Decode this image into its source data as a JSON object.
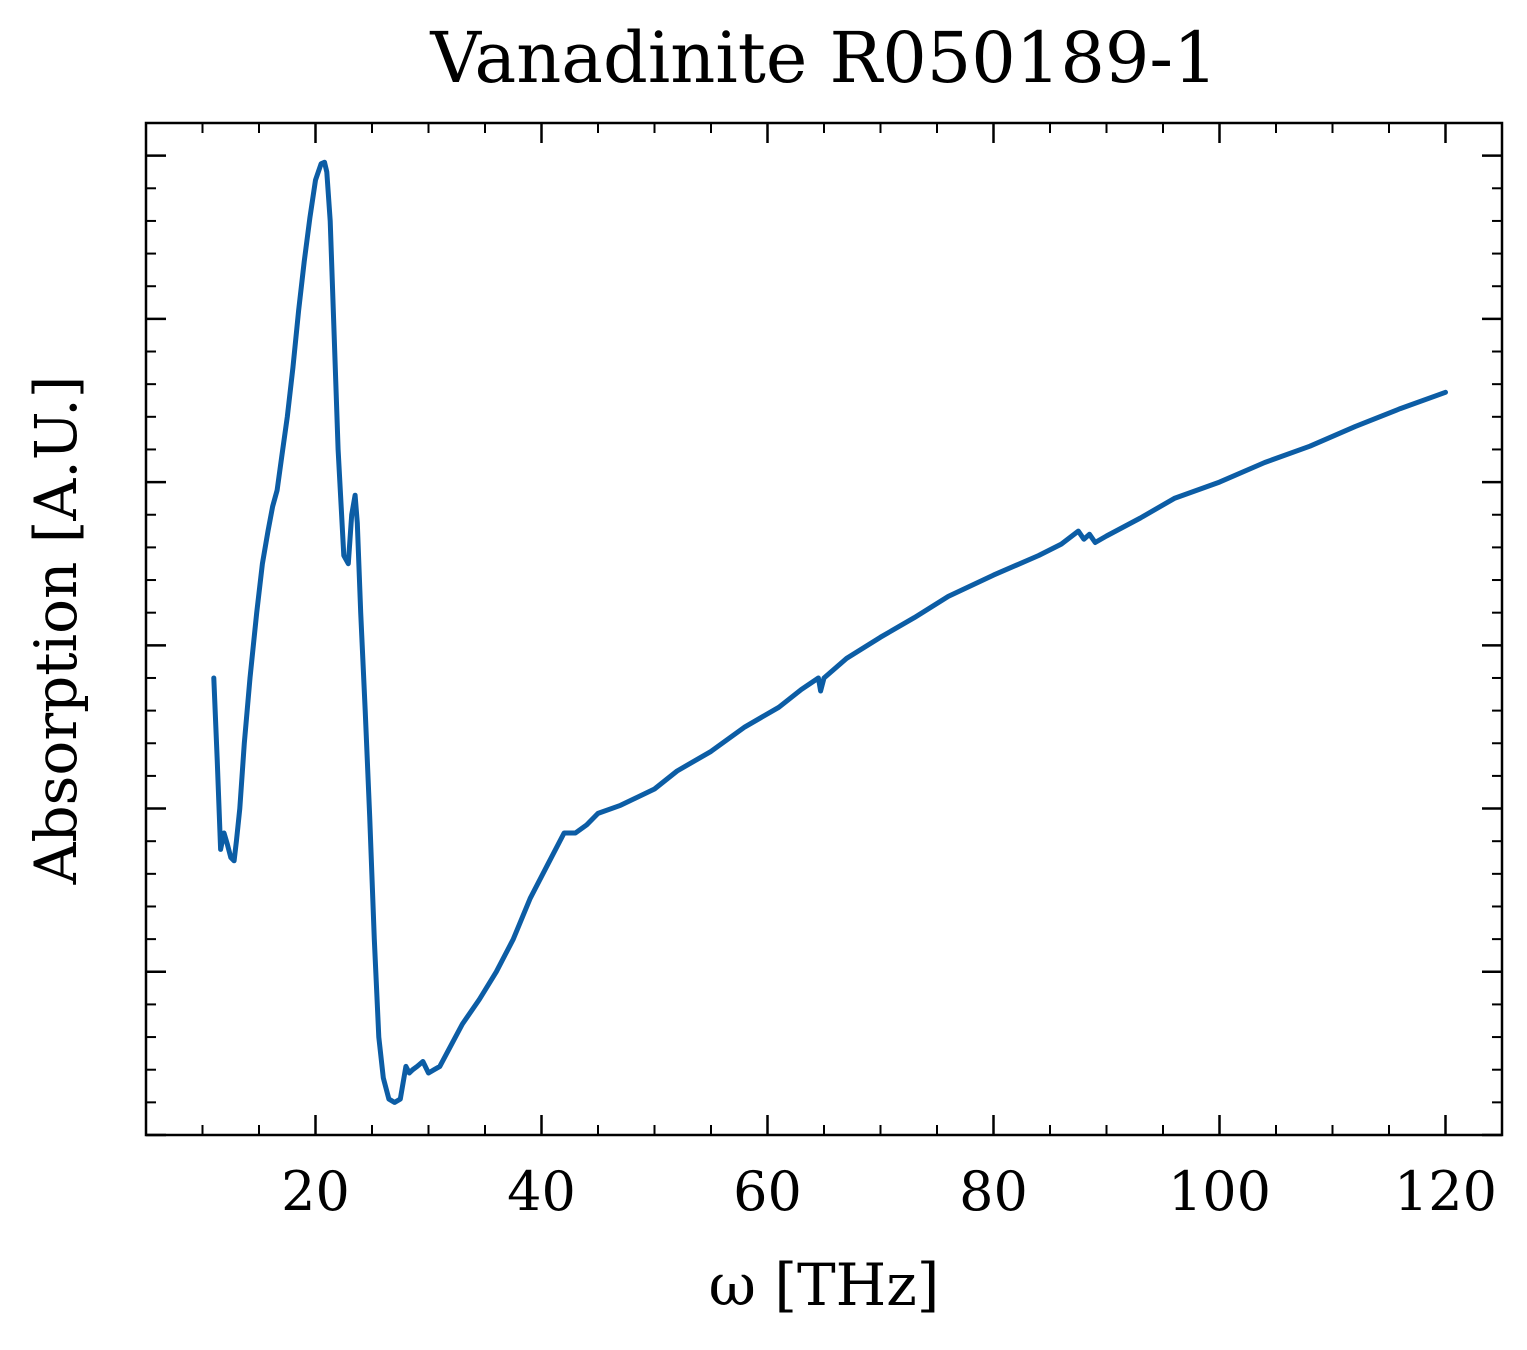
{
  "chart_data": {
    "type": "line",
    "title": "Vanadinite R050189-1",
    "xlabel": "ω [THz]",
    "ylabel": "Absorption [A.U.]",
    "xlim": [
      5,
      125
    ],
    "ylim": [
      0,
      6.2
    ],
    "y_tick_labels_shown": false,
    "grid": false,
    "x_ticks": [
      {
        "value": 20,
        "label": "20"
      },
      {
        "value": 40,
        "label": "40"
      },
      {
        "value": 60,
        "label": "60"
      },
      {
        "value": 80,
        "label": "80"
      },
      {
        "value": 100,
        "label": "100"
      },
      {
        "value": 120,
        "label": "120"
      }
    ],
    "series": [
      {
        "color": "#0c5da5",
        "x": [
          11.0,
          11.3,
          11.6,
          11.9,
          12.2,
          12.5,
          12.8,
          13.0,
          13.3,
          13.7,
          14.2,
          14.8,
          15.3,
          15.8,
          16.2,
          16.6,
          17.0,
          17.5,
          18.0,
          18.5,
          19.0,
          19.5,
          20.0,
          20.5,
          20.8,
          21.0,
          21.3,
          21.6,
          22.0,
          22.5,
          22.9,
          23.2,
          23.5,
          23.7,
          24.0,
          24.4,
          24.8,
          25.2,
          25.6,
          26.0,
          26.5,
          27.0,
          27.5,
          28.0,
          28.3,
          28.6,
          29.0,
          29.5,
          30.0,
          30.5,
          31.0,
          32.0,
          33.0,
          34.5,
          36.0,
          37.5,
          39.0,
          40.5,
          42.0,
          43.0,
          44.0,
          45.0,
          47.0,
          50.0,
          52.0,
          55.0,
          58.0,
          61.0,
          63.0,
          64.5,
          64.7,
          65.0,
          67.0,
          70.0,
          73.0,
          76.0,
          80.0,
          84.0,
          86.0,
          87.5,
          88.0,
          88.5,
          89.0,
          90.0,
          93.0,
          96.0,
          100.0,
          104.0,
          108.0,
          112.0,
          116.0,
          120.0
        ],
        "y": [
          2.8,
          2.3,
          1.75,
          1.85,
          1.78,
          1.7,
          1.68,
          1.8,
          2.0,
          2.4,
          2.8,
          3.2,
          3.5,
          3.7,
          3.85,
          3.95,
          4.15,
          4.4,
          4.7,
          5.05,
          5.35,
          5.62,
          5.85,
          5.95,
          5.96,
          5.9,
          5.6,
          5.0,
          4.2,
          3.55,
          3.5,
          3.8,
          3.92,
          3.75,
          3.2,
          2.6,
          1.95,
          1.2,
          0.6,
          0.35,
          0.22,
          0.2,
          0.22,
          0.42,
          0.38,
          0.4,
          0.42,
          0.45,
          0.38,
          0.4,
          0.42,
          0.55,
          0.68,
          0.83,
          1.0,
          1.2,
          1.45,
          1.65,
          1.85,
          1.85,
          1.9,
          1.97,
          2.02,
          2.12,
          2.23,
          2.35,
          2.5,
          2.62,
          2.73,
          2.8,
          2.72,
          2.8,
          2.92,
          3.05,
          3.17,
          3.3,
          3.43,
          3.55,
          3.62,
          3.7,
          3.65,
          3.68,
          3.63,
          3.67,
          3.78,
          3.9,
          4.0,
          4.12,
          4.22,
          4.34,
          4.45,
          4.55
        ]
      }
    ]
  }
}
